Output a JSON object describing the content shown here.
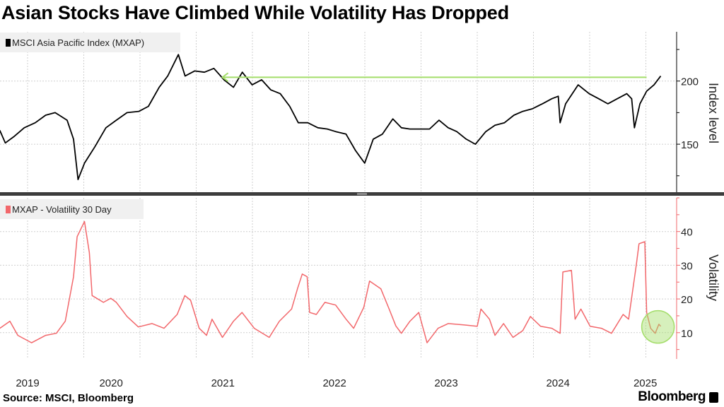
{
  "title": "Asian Stocks Have Climbed While Volatility Has Dropped",
  "source": "Source: MSCI, Bloomberg",
  "brand": "Bloomberg",
  "colors": {
    "index": "#000000",
    "volatility": "#f2676b",
    "annotation": "#a4dd6a",
    "legend_bg": "#f0f0f0"
  },
  "chart_data": [
    {
      "type": "line",
      "legend": "MSCI Asia Pacific Index (MXAP)",
      "ylabel": "Index level",
      "yticks": [
        150,
        200
      ],
      "ylim": [
        112,
        239
      ],
      "grid": true,
      "legend_position": "top-left",
      "annotation": {
        "type": "arrow",
        "value": 203,
        "from": "2025-06-03",
        "to": "2021-07-01"
      },
      "series": [
        {
          "name": "MSCI Asia Pacific Index (MXAP)",
          "points": [
            [
              "2019-07-04",
              161
            ],
            [
              "2019-07-22",
              151
            ],
            [
              "2019-08-19",
              156
            ],
            [
              "2019-09-22",
              163
            ],
            [
              "2019-10-28",
              167
            ],
            [
              "2019-12-01",
              173
            ],
            [
              "2020-01-01",
              175
            ],
            [
              "2020-02-09",
              169
            ],
            [
              "2020-03-01",
              154
            ],
            [
              "2020-03-16",
              122
            ],
            [
              "2020-04-06",
              135
            ],
            [
              "2020-05-10",
              148
            ],
            [
              "2020-06-15",
              163
            ],
            [
              "2020-07-19",
              169
            ],
            [
              "2020-08-23",
              175
            ],
            [
              "2020-10-01",
              176
            ],
            [
              "2020-11-01",
              180
            ],
            [
              "2020-12-06",
              195
            ],
            [
              "2021-01-03",
              204
            ],
            [
              "2021-02-07",
              221
            ],
            [
              "2021-03-01",
              204
            ],
            [
              "2021-04-01",
              208
            ],
            [
              "2021-05-03",
              207
            ],
            [
              "2021-06-03",
              210
            ],
            [
              "2021-07-06",
              201
            ],
            [
              "2021-08-06",
              195
            ],
            [
              "2021-09-04",
              207
            ],
            [
              "2021-10-06",
              197
            ],
            [
              "2021-11-06",
              201
            ],
            [
              "2021-12-06",
              193
            ],
            [
              "2022-01-06",
              190
            ],
            [
              "2022-02-06",
              180
            ],
            [
              "2022-03-06",
              167
            ],
            [
              "2022-04-06",
              167
            ],
            [
              "2022-05-09",
              163
            ],
            [
              "2022-06-09",
              162
            ],
            [
              "2022-07-06",
              160
            ],
            [
              "2022-08-09",
              158
            ],
            [
              "2022-09-09",
              145
            ],
            [
              "2022-10-09",
              135
            ],
            [
              "2022-11-06",
              154
            ],
            [
              "2022-12-06",
              158
            ],
            [
              "2023-01-09",
              170
            ],
            [
              "2023-02-06",
              163
            ],
            [
              "2023-03-06",
              162
            ],
            [
              "2023-04-06",
              162
            ],
            [
              "2023-05-09",
              162
            ],
            [
              "2023-06-09",
              169
            ],
            [
              "2023-07-09",
              163
            ],
            [
              "2023-08-06",
              160
            ],
            [
              "2023-09-06",
              154
            ],
            [
              "2023-10-06",
              150
            ],
            [
              "2023-11-09",
              160
            ],
            [
              "2023-12-09",
              165
            ],
            [
              "2024-01-09",
              167
            ],
            [
              "2024-02-09",
              173
            ],
            [
              "2024-03-09",
              176
            ],
            [
              "2024-04-09",
              178
            ],
            [
              "2024-05-12",
              182
            ],
            [
              "2024-06-12",
              186
            ],
            [
              "2024-07-03",
              188
            ],
            [
              "2024-07-09",
              167
            ],
            [
              "2024-07-27",
              182
            ],
            [
              "2024-09-06",
              197
            ],
            [
              "2024-10-12",
              190
            ],
            [
              "2024-11-12",
              186
            ],
            [
              "2024-12-12",
              182
            ],
            [
              "2025-01-12",
              186
            ],
            [
              "2025-02-12",
              190
            ],
            [
              "2025-02-28",
              186
            ],
            [
              "2025-03-09",
              163
            ],
            [
              "2025-03-27",
              182
            ],
            [
              "2025-04-18",
              192
            ],
            [
              "2025-05-12",
              197
            ],
            [
              "2025-06-03",
              204
            ]
          ]
        }
      ]
    },
    {
      "type": "line",
      "legend": "MXAP - Volatility 30 Day",
      "ylabel": "Volatility",
      "yticks": [
        10,
        20,
        30,
        40
      ],
      "ylim": [
        2.2,
        50
      ],
      "grid": true,
      "legend_position": "top-left",
      "annotation": {
        "type": "circle",
        "date": "2025-05-25",
        "value": 11.7
      },
      "xticks": [
        "2019",
        "2020",
        "2021",
        "2022",
        "2023",
        "2024",
        "2025"
      ],
      "series": [
        {
          "name": "MXAP - Volatility 30 Day",
          "points": [
            [
              "2019-07-04",
              11.3
            ],
            [
              "2019-08-06",
              13.4
            ],
            [
              "2019-09-01",
              9.2
            ],
            [
              "2019-10-16",
              7
            ],
            [
              "2019-12-01",
              9.2
            ],
            [
              "2020-01-05",
              9.8
            ],
            [
              "2020-02-03",
              13.4
            ],
            [
              "2020-03-01",
              26.6
            ],
            [
              "2020-03-13",
              38.5
            ],
            [
              "2020-04-06",
              43
            ],
            [
              "2020-04-22",
              33.7
            ],
            [
              "2020-05-01",
              21
            ],
            [
              "2020-06-07",
              19
            ],
            [
              "2020-07-01",
              20.2
            ],
            [
              "2020-07-19",
              19
            ],
            [
              "2020-08-23",
              14.8
            ],
            [
              "2020-09-29",
              11.7
            ],
            [
              "2020-11-13",
              12.7
            ],
            [
              "2020-12-22",
              11.3
            ],
            [
              "2021-02-03",
              15.4
            ],
            [
              "2021-02-28",
              21
            ],
            [
              "2021-03-19",
              19.6
            ],
            [
              "2021-04-16",
              11.3
            ],
            [
              "2021-05-10",
              9.2
            ],
            [
              "2021-05-28",
              14
            ],
            [
              "2021-07-01",
              8.6
            ],
            [
              "2021-08-06",
              13.4
            ],
            [
              "2021-09-03",
              16
            ],
            [
              "2021-10-13",
              11.3
            ],
            [
              "2021-12-01",
              8.6
            ],
            [
              "2022-01-03",
              13.4
            ],
            [
              "2022-02-12",
              17
            ],
            [
              "2022-03-04",
              23.2
            ],
            [
              "2022-03-19",
              27.4
            ],
            [
              "2022-04-04",
              26.6
            ],
            [
              "2022-04-12",
              16
            ],
            [
              "2022-05-04",
              15.4
            ],
            [
              "2022-06-01",
              19
            ],
            [
              "2022-07-06",
              18.2
            ],
            [
              "2022-08-09",
              14
            ],
            [
              "2022-09-03",
              11.3
            ],
            [
              "2022-10-06",
              17.5
            ],
            [
              "2022-10-25",
              25.3
            ],
            [
              "2022-12-01",
              23
            ],
            [
              "2022-12-28",
              17
            ],
            [
              "2023-01-19",
              12
            ],
            [
              "2023-02-06",
              9.8
            ],
            [
              "2023-03-06",
              13.4
            ],
            [
              "2023-04-04",
              16
            ],
            [
              "2023-05-01",
              7
            ],
            [
              "2023-06-06",
              11.3
            ],
            [
              "2023-07-09",
              12.7
            ],
            [
              "2023-08-28",
              12.3
            ],
            [
              "2023-10-12",
              11.9
            ],
            [
              "2023-10-24",
              17
            ],
            [
              "2023-11-21",
              14
            ],
            [
              "2023-12-09",
              9.2
            ],
            [
              "2024-01-06",
              12.7
            ],
            [
              "2024-02-06",
              8.6
            ],
            [
              "2024-03-09",
              10.6
            ],
            [
              "2024-04-03",
              14.8
            ],
            [
              "2024-05-06",
              11.9
            ],
            [
              "2024-06-12",
              11.3
            ],
            [
              "2024-07-09",
              9.8
            ],
            [
              "2024-07-18",
              28
            ],
            [
              "2024-08-15",
              28.5
            ],
            [
              "2024-08-27",
              14
            ],
            [
              "2024-09-15",
              17
            ],
            [
              "2024-10-15",
              11.9
            ],
            [
              "2024-11-21",
              11.3
            ],
            [
              "2024-12-24",
              9.8
            ],
            [
              "2025-01-31",
              15.4
            ],
            [
              "2025-02-18",
              14
            ],
            [
              "2025-03-15",
              30
            ],
            [
              "2025-03-24",
              36.4
            ],
            [
              "2025-04-12",
              37
            ],
            [
              "2025-04-18",
              16
            ],
            [
              "2025-05-01",
              11.3
            ],
            [
              "2025-05-16",
              9.8
            ],
            [
              "2025-05-28",
              12.5
            ],
            [
              "2025-06-03",
              11.9
            ]
          ]
        }
      ]
    }
  ]
}
